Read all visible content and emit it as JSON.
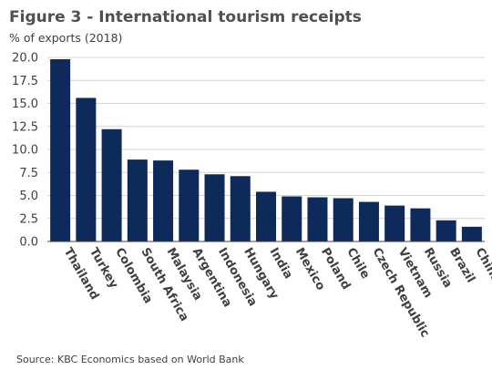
{
  "title": "Figure 3 - International tourism receipts",
  "subtitle": "% of exports (2018)",
  "source": "Source: KBC Economics based on World Bank",
  "colors": {
    "bar": "#0d2a5a",
    "grid": "#d4d4d4",
    "axis": "#404040"
  },
  "chart_data": {
    "type": "bar",
    "categories": [
      "Thailand",
      "Turkey",
      "Colombia",
      "South Africa",
      "Malaysia",
      "Argentina",
      "Indonesia",
      "Hungary",
      "India",
      "Mexico",
      "Poland",
      "Chile",
      "Czech Republic",
      "Vietnam",
      "Russia",
      "Brazil",
      "China"
    ],
    "values": [
      19.8,
      15.6,
      12.2,
      8.9,
      8.8,
      7.8,
      7.3,
      7.1,
      5.4,
      4.9,
      4.8,
      4.7,
      4.3,
      3.9,
      3.6,
      2.3,
      1.6
    ],
    "ylim": [
      0,
      20
    ],
    "yticks": [
      "0.0",
      "2.5",
      "5.0",
      "7.5",
      "10.0",
      "12.5",
      "15.0",
      "17.5",
      "20.0"
    ],
    "grid": true,
    "legend": "none"
  }
}
